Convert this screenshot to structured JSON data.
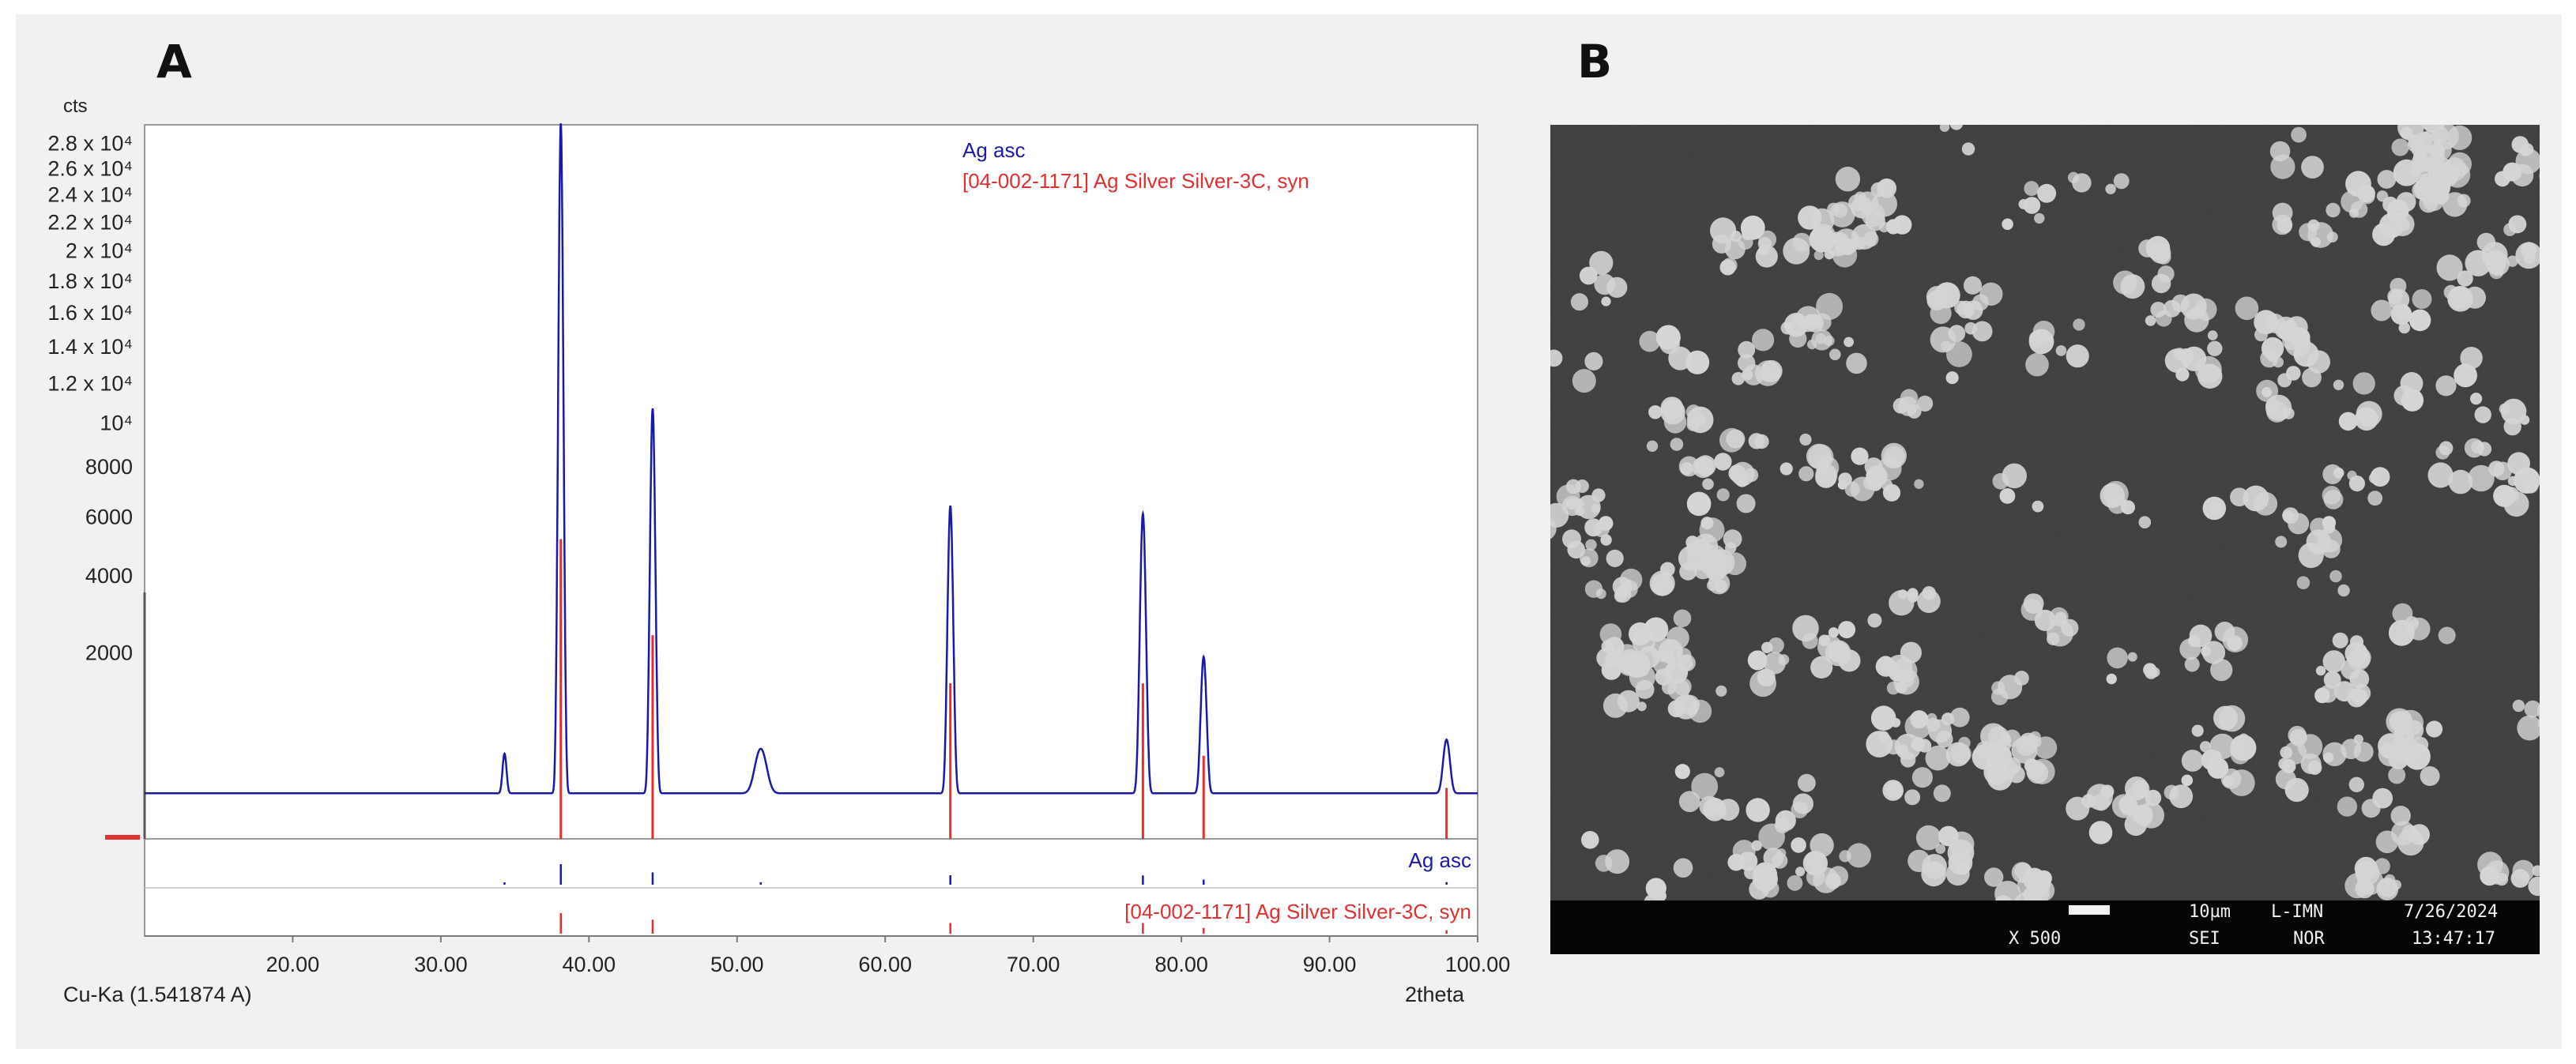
{
  "panels": {
    "a_label": "A",
    "b_label": "B"
  },
  "chart_data": {
    "type": "line",
    "y_unit": "cts",
    "x_label": "2theta",
    "radiation": "Cu-Ka (1.541874 A)",
    "x_ticks": [
      "20.00",
      "30.00",
      "40.00",
      "50.00",
      "60.00",
      "70.00",
      "80.00",
      "90.00",
      "100.00"
    ],
    "xlim": [
      10,
      100
    ],
    "y_ticks": [
      {
        "value": 2000,
        "label": "2000"
      },
      {
        "value": 4000,
        "label": "4000"
      },
      {
        "value": 6000,
        "label": "6000"
      },
      {
        "value": 8000,
        "label": "8000"
      },
      {
        "value": 10000,
        "label": "10⁴"
      },
      {
        "value": 12000,
        "label": "1.2 x 10⁴"
      },
      {
        "value": 14000,
        "label": "1.4 x 10⁴"
      },
      {
        "value": 16000,
        "label": "1.6 x 10⁴"
      },
      {
        "value": 18000,
        "label": "1.8 x 10⁴"
      },
      {
        "value": 20000,
        "label": "2 x 10⁴"
      },
      {
        "value": 22000,
        "label": "2.2 x 10⁴"
      },
      {
        "value": 24000,
        "label": "2.4 x 10⁴"
      },
      {
        "value": 26000,
        "label": "2.6 x 10⁴"
      },
      {
        "value": 28000,
        "label": "2.8 x 10⁴"
      }
    ],
    "y_scale": "sqrt",
    "ylim": [
      0,
      29500
    ],
    "series": [
      {
        "name": "Ag asc",
        "color": "#1a1aa8",
        "baseline": 120,
        "peaks": [
          {
            "x": 34.3,
            "y": 300,
            "w": 0.12
          },
          {
            "x": 38.1,
            "y": 29500,
            "w": 0.13
          },
          {
            "x": 44.3,
            "y": 10600,
            "w": 0.14
          },
          {
            "x": 51.6,
            "y": 350,
            "w": 0.35
          },
          {
            "x": 64.4,
            "y": 6300,
            "w": 0.15
          },
          {
            "x": 77.4,
            "y": 6000,
            "w": 0.16
          },
          {
            "x": 81.5,
            "y": 1800,
            "w": 0.16
          },
          {
            "x": 97.9,
            "y": 450,
            "w": 0.2
          }
        ]
      },
      {
        "name": "[04-002-1171] Ag Silver Silver-3C, syn",
        "color": "#e03030",
        "sticks": [
          {
            "x": 38.1,
            "y": 5200
          },
          {
            "x": 44.3,
            "y": 2400
          },
          {
            "x": 64.4,
            "y": 1400
          },
          {
            "x": 77.4,
            "y": 1400
          },
          {
            "x": 81.5,
            "y": 400
          },
          {
            "x": 97.9,
            "y": 150
          }
        ]
      }
    ],
    "legend": {
      "placement": "top-right"
    }
  },
  "sem": {
    "scale_value": "10µm",
    "detector": "L-IMN",
    "date": "7/26/2024",
    "magnification": "X 500",
    "signal": "SEI",
    "mode": "NOR",
    "time": "13:47:17",
    "background_color": "#3a3a3a",
    "particle_color": "#d4d4d4"
  }
}
